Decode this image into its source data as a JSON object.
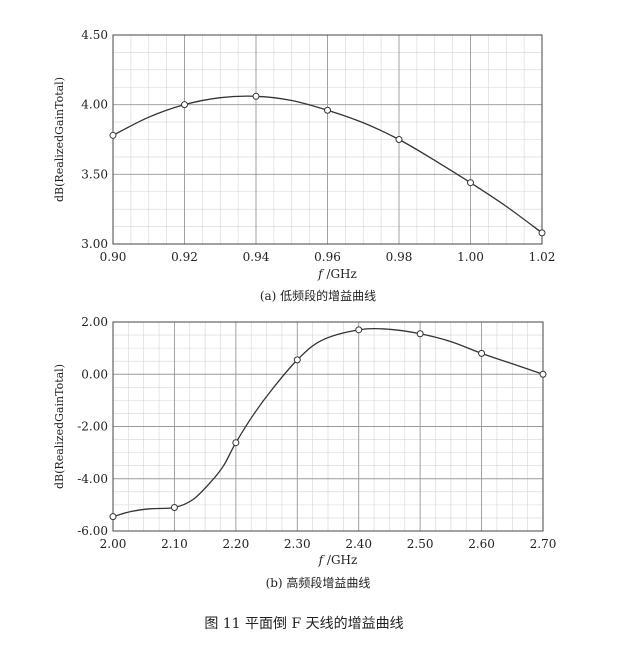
{
  "chart_data": [
    {
      "type": "line",
      "x": [
        0.9,
        0.92,
        0.94,
        0.96,
        0.98,
        1.0,
        1.02
      ],
      "series": [
        {
          "values": [
            3.78,
            4.0,
            4.06,
            3.96,
            3.75,
            3.44,
            3.08
          ]
        }
      ],
      "curve": [
        [
          0.9,
          3.78
        ],
        [
          0.91,
          3.91
        ],
        [
          0.92,
          4.0
        ],
        [
          0.93,
          4.05
        ],
        [
          0.94,
          4.06
        ],
        [
          0.95,
          4.03
        ],
        [
          0.96,
          3.96
        ],
        [
          0.97,
          3.87
        ],
        [
          0.98,
          3.75
        ],
        [
          0.99,
          3.6
        ],
        [
          1.0,
          3.44
        ],
        [
          1.01,
          3.27
        ],
        [
          1.02,
          3.08
        ]
      ],
      "xlabel": "f /GHz",
      "ylabel": "dB(RealizedGainTotal)",
      "xlim": [
        0.9,
        1.02
      ],
      "ylim": [
        3.0,
        4.5
      ],
      "xticks": [
        "0.90",
        "0.92",
        "0.94",
        "0.96",
        "0.98",
        "1.00",
        "1.02"
      ],
      "yticks": [
        "3.00",
        "3.50",
        "4.00",
        "4.50"
      ],
      "caption": "(a)  低频段的增益曲线",
      "grid": true
    },
    {
      "type": "line",
      "x": [
        2.0,
        2.1,
        2.2,
        2.3,
        2.4,
        2.5,
        2.6,
        2.7
      ],
      "series": [
        {
          "values": [
            -5.45,
            -5.1,
            -2.62,
            0.55,
            1.7,
            1.55,
            0.8,
            0.0
          ]
        }
      ],
      "curve": [
        [
          2.0,
          -5.45
        ],
        [
          2.03,
          -5.25
        ],
        [
          2.06,
          -5.15
        ],
        [
          2.1,
          -5.1
        ],
        [
          2.13,
          -4.8
        ],
        [
          2.16,
          -4.1
        ],
        [
          2.18,
          -3.5
        ],
        [
          2.2,
          -2.62
        ],
        [
          2.23,
          -1.5
        ],
        [
          2.26,
          -0.55
        ],
        [
          2.3,
          0.55
        ],
        [
          2.34,
          1.3
        ],
        [
          2.4,
          1.7
        ],
        [
          2.45,
          1.72
        ],
        [
          2.5,
          1.55
        ],
        [
          2.55,
          1.25
        ],
        [
          2.6,
          0.8
        ],
        [
          2.65,
          0.4
        ],
        [
          2.7,
          0.0
        ]
      ],
      "xlabel": "f /GHz",
      "ylabel": "dB(RealizedGainTotal)",
      "xlim": [
        2.0,
        2.7
      ],
      "ylim": [
        -6.0,
        2.0
      ],
      "xticks": [
        "2.00",
        "2.10",
        "2.20",
        "2.30",
        "2.40",
        "2.50",
        "2.60",
        "2.70"
      ],
      "yticks": [
        "-6.00",
        "-4.00",
        "-2.00",
        "0.00",
        "2.00"
      ],
      "caption": "(b)  高频段增益曲线",
      "grid": true
    }
  ],
  "figure_caption": "图 11    平面倒 F 天线的增益曲线"
}
